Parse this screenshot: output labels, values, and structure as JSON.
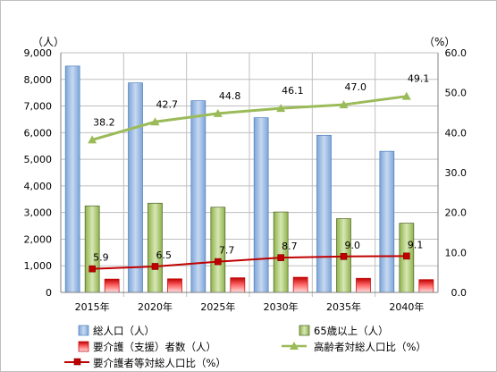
{
  "chart_data": {
    "type": "bar",
    "categories": [
      "2015年",
      "2020年",
      "2025年",
      "2030年",
      "2035年",
      "2040年"
    ],
    "y_left": {
      "unit": "（人）",
      "min": 0,
      "max": 9000,
      "step": 1000,
      "ticks": [
        "0",
        "1,000",
        "2,000",
        "3,000",
        "4,000",
        "5,000",
        "6,000",
        "7,000",
        "8,000",
        "9,000"
      ]
    },
    "y_right": {
      "unit": "（%）",
      "min": 0,
      "max": 60,
      "step": 10,
      "ticks": [
        "0.0",
        "10.0",
        "20.0",
        "30.0",
        "40.0",
        "50.0",
        "60.0"
      ]
    },
    "grid": true,
    "legend_position": "bottom",
    "bar_series": [
      {
        "name": "総人口（人）",
        "color": "#95b3d7",
        "values": [
          8500,
          7870,
          7200,
          6560,
          5900,
          5300
        ]
      },
      {
        "name": "65歳以上（人）",
        "color": "#9bbb59",
        "values": [
          3250,
          3350,
          3200,
          3020,
          2770,
          2600
        ]
      },
      {
        "name": "要介護（支援）者数（人）",
        "color": "#e84a4a",
        "values": [
          500,
          510,
          550,
          570,
          530,
          480
        ]
      }
    ],
    "line_series": [
      {
        "name": "高齢者対総人口比（%）",
        "color": "#9bbb59",
        "marker": "triangle",
        "values": [
          38.2,
          42.7,
          44.8,
          46.1,
          47.0,
          49.1
        ],
        "labels": [
          "38.2",
          "42.7",
          "44.8",
          "46.1",
          "47.0",
          "49.1"
        ]
      },
      {
        "name": "要介護者等対総人口比（%）",
        "color": "#c00000",
        "marker": "square",
        "values": [
          5.9,
          6.5,
          7.7,
          8.7,
          9.0,
          9.1
        ],
        "labels": [
          "5.9",
          "6.5",
          "7.7",
          "8.7",
          "9.0",
          "9.1"
        ]
      }
    ]
  }
}
